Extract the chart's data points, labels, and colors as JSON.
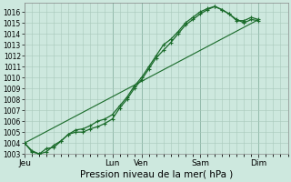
{
  "title": "Pression niveau de la mer( hPa )",
  "bg_color": "#cde8de",
  "grid_color": "#a8c8bb",
  "line_color": "#1a6b2a",
  "ylim": [
    1003,
    1016.8
  ],
  "ytick_min": 1003,
  "ytick_max": 1016,
  "day_labels": [
    "Jeu",
    "Lun",
    "Ven",
    "Sam",
    "Dim"
  ],
  "day_positions": [
    0,
    72,
    96,
    144,
    192
  ],
  "xlim": [
    0,
    216
  ],
  "xlabel_fontsize": 6.5,
  "ylabel_fontsize": 5.5,
  "title_fontsize": 7.5,
  "lw": 0.9,
  "marker_size": 3.5,
  "line1_x": [
    0,
    6,
    12,
    18,
    24,
    30,
    36,
    42,
    48,
    54,
    60,
    66,
    72,
    78,
    84,
    90,
    96,
    102,
    108,
    114,
    120,
    126,
    132,
    138,
    144,
    150,
    156,
    162,
    168,
    174,
    180,
    186,
    192
  ],
  "line1_y": [
    1004.0,
    1003.3,
    1003.0,
    1003.5,
    1003.6,
    1004.2,
    1004.8,
    1005.0,
    1005.0,
    1005.3,
    1005.5,
    1005.8,
    1006.2,
    1007.2,
    1008.0,
    1009.0,
    1009.8,
    1010.8,
    1011.8,
    1012.5,
    1013.2,
    1014.0,
    1014.8,
    1015.3,
    1015.8,
    1016.2,
    1016.5,
    1016.2,
    1015.8,
    1015.3,
    1015.0,
    1015.3,
    1015.2
  ],
  "line2_x": [
    0,
    6,
    12,
    18,
    24,
    30,
    36,
    42,
    48,
    54,
    60,
    66,
    72,
    78,
    84,
    90,
    96,
    102,
    108,
    114,
    120,
    126,
    132,
    138,
    144,
    150,
    156,
    162,
    168,
    174,
    180,
    186,
    192
  ],
  "line2_y": [
    1004.0,
    1003.2,
    1003.0,
    1003.2,
    1003.8,
    1004.2,
    1004.8,
    1005.2,
    1005.3,
    1005.6,
    1006.0,
    1006.2,
    1006.6,
    1007.4,
    1008.2,
    1009.2,
    1010.0,
    1011.0,
    1012.0,
    1013.0,
    1013.5,
    1014.2,
    1015.0,
    1015.5,
    1016.0,
    1016.3,
    1016.5,
    1016.2,
    1015.8,
    1015.2,
    1015.2,
    1015.5,
    1015.3
  ],
  "line3_x": [
    0,
    192
  ],
  "line3_y": [
    1004.0,
    1015.3
  ]
}
